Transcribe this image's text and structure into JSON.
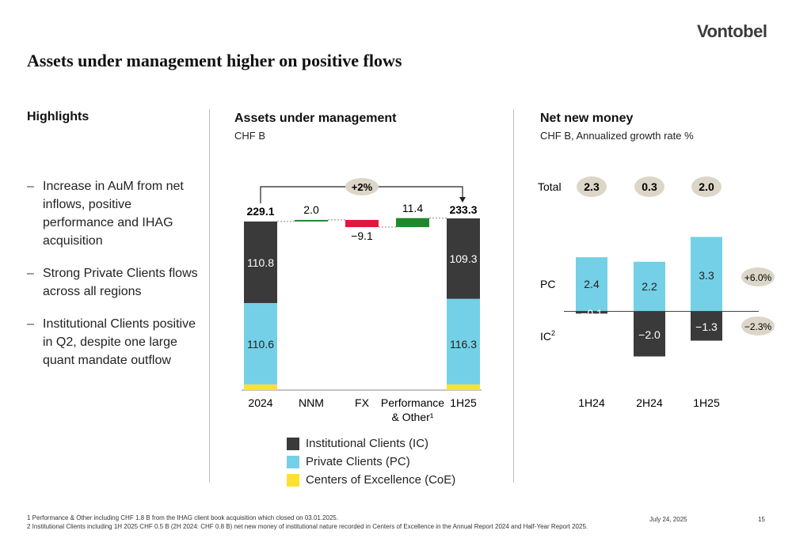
{
  "header": {
    "logo_text": "Vontobel",
    "title": "Assets under management higher on positive flows"
  },
  "highlights": {
    "title": "Highlights",
    "items": [
      "Increase in AuM from net inflows, positive performance and IHAG acquisition",
      "Strong Private Clients flows across all regions",
      "Institutional Clients positive in Q2, despite one large quant mandate outflow"
    ]
  },
  "colors": {
    "ic": "#3a3a3a",
    "pc": "#74d0e6",
    "coe": "#fde12d",
    "positive": "#1f8a2b",
    "negative": "#e0173f",
    "pill": "#dcd6c8"
  },
  "chart_data": [
    {
      "type": "bar",
      "title": "Assets under management",
      "subtitle": "CHF B",
      "categories": [
        "2024",
        "NNM",
        "FX",
        "Performance",
        "1H25"
      ],
      "category_second_line": [
        "",
        "",
        "",
        "& Other¹",
        ""
      ],
      "stacked": [
        {
          "category": "2024",
          "total": 229.1,
          "ic": 110.8,
          "pc": 110.6,
          "coe": 7.7
        },
        {
          "category": "1H25",
          "total": 233.3,
          "ic": 109.3,
          "pc": 116.3,
          "coe": 7.7
        }
      ],
      "waterfall": [
        {
          "category": "NNM",
          "value": 2.0,
          "label": "2.0"
        },
        {
          "category": "FX",
          "value": -9.1,
          "label": "−9.1"
        },
        {
          "category": "Performance",
          "value": 11.4,
          "label": "11.4"
        }
      ],
      "total_labels": [
        "229.1",
        "233.3"
      ],
      "ic_labels": [
        "110.8",
        "109.3"
      ],
      "pc_labels": [
        "110.6",
        "116.3"
      ],
      "change_label": "+2%",
      "legend": [
        {
          "name": "Institutional Clients (IC)",
          "color": "#3a3a3a"
        },
        {
          "name": "Private Clients (PC)",
          "color": "#74d0e6"
        },
        {
          "name": "Centers of Excellence (CoE)",
          "color": "#fde12d"
        }
      ]
    },
    {
      "type": "bar",
      "title": "Net new money",
      "subtitle": "CHF B, Annualized growth rate %",
      "categories": [
        "1H24",
        "2H24",
        "1H25"
      ],
      "series": [
        {
          "name": "PC",
          "values": [
            2.4,
            2.2,
            3.3
          ],
          "labels": [
            "2.4",
            "2.2",
            "3.3"
          ]
        },
        {
          "name": "IC",
          "values": [
            -0.1,
            -2.0,
            -1.3
          ],
          "labels": [
            "−0.1",
            "−2.0",
            "−1.3"
          ]
        }
      ],
      "total_row_label": "Total",
      "totals": [
        "2.3",
        "0.3",
        "2.0"
      ],
      "row_labels": {
        "pc": "PC",
        "ic": "IC",
        "ic_sup": "2"
      },
      "growth_rates": {
        "pc": "+6.0%",
        "ic": "−2.3%"
      }
    }
  ],
  "footer": {
    "note1": "1 Performance & Other including CHF 1.8 B from the IHAG client book acquisition which closed on 03.01.2025.",
    "note2": "2 Institutional Clients including 1H 2025 CHF 0.5 B (2H 2024: CHF 0.8 B) net new money of institutional nature recorded in Centers of Excellence in the Annual Report 2024 and Half-Year Report 2025.",
    "date": "July 24, 2025",
    "page": "15"
  }
}
